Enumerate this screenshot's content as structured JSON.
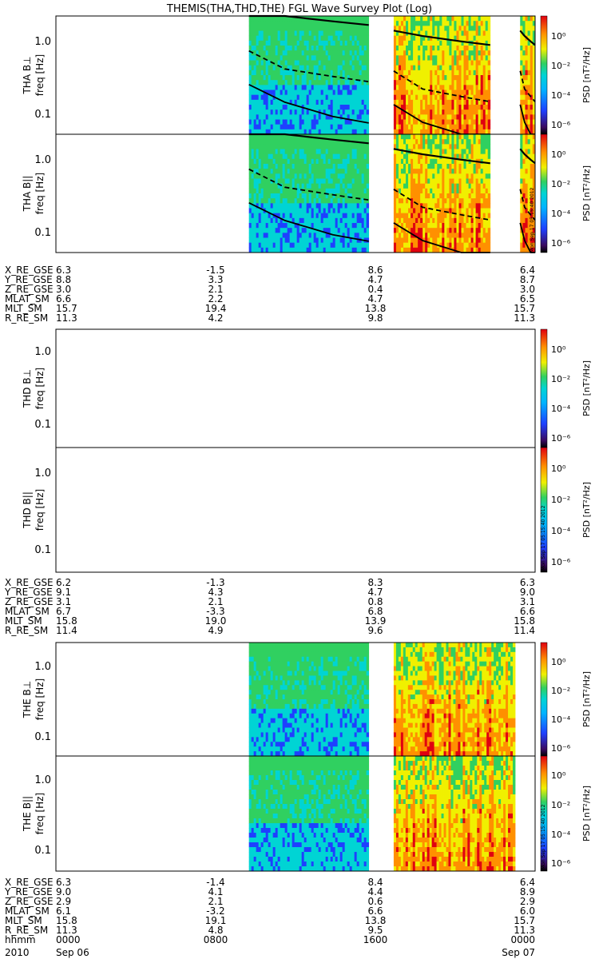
{
  "title": "THEMIS(THA,THD,THE) FGL Wave Survey Plot (Log)",
  "stamp": "Mon Sep 17 05:15:40 2012",
  "colors": {
    "dark": "#3a0a60",
    "blue": "#1e40ff",
    "cyan": "#00d4d4",
    "green": "#30d060",
    "yellow": "#f0f000",
    "orange": "#ff9000",
    "red": "#e00010",
    "curve": "#000000"
  },
  "chart_data": [
    {
      "type": "heatmap",
      "id": "tha_bperp",
      "ylabel": "THA B⊥",
      "yunit": "freq [Hz]",
      "yscale": "log",
      "ylim": [
        0.05,
        1.7
      ],
      "yticks": [
        "1.0",
        "0.1"
      ],
      "cbar_label": "PSD [nT²/Hz]",
      "cbar_ticks": [
        "10⁰",
        "10⁻²",
        "10⁻⁴",
        "10⁻⁶"
      ],
      "data_segments_hhmm": [
        [
          "0940",
          "1540"
        ],
        [
          "1655",
          "2145"
        ],
        [
          "2315",
          "2400"
        ]
      ],
      "curves": [
        {
          "style": "solid",
          "points": [
            [
              0.0,
              2.0
            ],
            [
              0.3,
              1.7
            ],
            [
              0.7,
              1.45
            ],
            [
              1,
              1.3
            ]
          ]
        },
        {
          "style": "dashed",
          "points": [
            [
              0.0,
              0.6
            ],
            [
              0.3,
              0.35
            ],
            [
              0.7,
              0.28
            ],
            [
              1,
              0.24
            ]
          ]
        },
        {
          "style": "solid",
          "points": [
            [
              0.0,
              0.22
            ],
            [
              0.3,
              0.13
            ],
            [
              0.7,
              0.085
            ],
            [
              1,
              0.07
            ]
          ]
        }
      ]
    },
    {
      "type": "heatmap",
      "id": "tha_bpar",
      "ylabel": "THA B||",
      "yunit": "freq [Hz]",
      "yscale": "log",
      "ylim": [
        0.05,
        1.7
      ],
      "yticks": [
        "1.0",
        "0.1"
      ],
      "cbar_label": "PSD [nT²/Hz]",
      "cbar_ticks": [
        "10⁰",
        "10⁻²",
        "10⁻⁴",
        "10⁻⁶"
      ]
    },
    {
      "type": "heatmap",
      "id": "thd_bperp",
      "ylabel": "THD B⊥",
      "yunit": "freq [Hz]",
      "yscale": "log",
      "ylim": [
        0.05,
        1.7
      ],
      "yticks": [
        "1.0",
        "0.1"
      ],
      "cbar_label": "PSD [nT²/Hz]",
      "cbar_ticks": [
        "10⁰",
        "10⁻²",
        "10⁻⁴",
        "10⁻⁶"
      ],
      "data_segments_hhmm": []
    },
    {
      "type": "heatmap",
      "id": "thd_bpar",
      "ylabel": "THD B||",
      "yunit": "freq [Hz]",
      "yscale": "log",
      "ylim": [
        0.05,
        1.7
      ],
      "yticks": [
        "1.0",
        "0.1"
      ],
      "cbar_label": "PSD [nT²/Hz]",
      "cbar_ticks": [
        "10⁰",
        "10⁻²",
        "10⁻⁴",
        "10⁻⁶"
      ],
      "data_segments_hhmm": []
    },
    {
      "type": "heatmap",
      "id": "the_bperp",
      "ylabel": "THE B⊥",
      "yunit": "freq [Hz]",
      "yscale": "log",
      "ylim": [
        0.05,
        1.7
      ],
      "yticks": [
        "1.0",
        "0.1"
      ],
      "cbar_label": "PSD [nT²/Hz]",
      "cbar_ticks": [
        "10⁰",
        "10⁻²",
        "10⁻⁴",
        "10⁻⁶"
      ],
      "data_segments_hhmm": [
        [
          "0940",
          "1540"
        ],
        [
          "1655",
          "2300"
        ]
      ]
    },
    {
      "type": "heatmap",
      "id": "the_bpar",
      "ylabel": "THE B||",
      "yunit": "freq [Hz]",
      "yscale": "log",
      "ylim": [
        0.05,
        1.7
      ],
      "yticks": [
        "1.0",
        "0.1"
      ],
      "cbar_label": "PSD [nT²/Hz]",
      "cbar_ticks": [
        "10⁰",
        "10⁻²",
        "10⁻⁴",
        "10⁻⁶"
      ]
    }
  ],
  "ephemeris": [
    {
      "rows": [
        {
          "label": "X_RE_GSE",
          "values": [
            "6.3",
            "-1.5",
            "8.6",
            "6.4"
          ]
        },
        {
          "label": "Y_RE_GSE",
          "values": [
            "8.8",
            "3.3",
            "4.7",
            "8.7"
          ]
        },
        {
          "label": "Z_RE_GSE",
          "values": [
            "3.0",
            "2.1",
            "0.4",
            "3.0"
          ]
        },
        {
          "label": "MLAT_SM",
          "values": [
            "6.6",
            "2.2",
            "4.7",
            "6.5"
          ]
        },
        {
          "label": "MLT_SM",
          "values": [
            "15.7",
            "19.4",
            "13.8",
            "15.7"
          ]
        },
        {
          "label": "R_RE_SM",
          "values": [
            "11.3",
            "4.2",
            "9.8",
            "11.3"
          ]
        }
      ]
    },
    {
      "rows": [
        {
          "label": "X_RE_GSE",
          "values": [
            "6.2",
            "-1.3",
            "8.3",
            "6.3"
          ]
        },
        {
          "label": "Y_RE_GSE",
          "values": [
            "9.1",
            "4.3",
            "4.7",
            "9.0"
          ]
        },
        {
          "label": "Z_RE_GSE",
          "values": [
            "3.1",
            "2.1",
            "0.8",
            "3.1"
          ]
        },
        {
          "label": "MLAT_SM",
          "values": [
            "6.7",
            "-3.3",
            "6.8",
            "6.6"
          ]
        },
        {
          "label": "MLT_SM",
          "values": [
            "15.8",
            "19.0",
            "13.9",
            "15.8"
          ]
        },
        {
          "label": "R_RE_SM",
          "values": [
            "11.4",
            "4.9",
            "9.6",
            "11.4"
          ]
        }
      ]
    },
    {
      "rows": [
        {
          "label": "X_RE_GSE",
          "values": [
            "6.3",
            "-1.4",
            "8.4",
            "6.4"
          ]
        },
        {
          "label": "Y_RE_GSE",
          "values": [
            "9.0",
            "4.1",
            "4.4",
            "8.9"
          ]
        },
        {
          "label": "Z_RE_GSE",
          "values": [
            "2.9",
            "2.1",
            "0.6",
            "2.9"
          ]
        },
        {
          "label": "MLAT_SM",
          "values": [
            "6.1",
            "-3.2",
            "6.6",
            "6.0"
          ]
        },
        {
          "label": "MLT_SM",
          "values": [
            "15.8",
            "19.1",
            "13.8",
            "15.7"
          ]
        },
        {
          "label": "R_RE_SM",
          "values": [
            "11.3",
            "4.8",
            "9.5",
            "11.3"
          ]
        },
        {
          "label": "hhmm",
          "values": [
            "0000",
            "0800",
            "1600",
            "0000"
          ]
        }
      ]
    }
  ],
  "date_row": {
    "year": "2010",
    "start_date": "Sep 06",
    "end_date": "Sep 07"
  }
}
